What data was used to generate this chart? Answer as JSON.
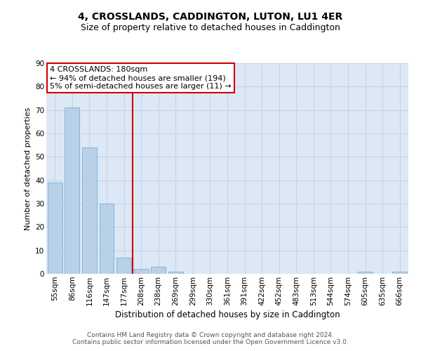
{
  "title1": "4, CROSSLANDS, CADDINGTON, LUTON, LU1 4ER",
  "title2": "Size of property relative to detached houses in Caddington",
  "xlabel": "Distribution of detached houses by size in Caddington",
  "ylabel": "Number of detached properties",
  "categories": [
    "55sqm",
    "86sqm",
    "116sqm",
    "147sqm",
    "177sqm",
    "208sqm",
    "238sqm",
    "269sqm",
    "299sqm",
    "330sqm",
    "361sqm",
    "391sqm",
    "422sqm",
    "452sqm",
    "483sqm",
    "513sqm",
    "544sqm",
    "574sqm",
    "605sqm",
    "635sqm",
    "666sqm"
  ],
  "values": [
    39,
    71,
    54,
    30,
    7,
    2,
    3,
    1,
    0,
    0,
    0,
    0,
    0,
    0,
    0,
    0,
    0,
    0,
    1,
    0,
    1
  ],
  "bar_color": "#b8d0e8",
  "bar_edge_color": "#7aafd4",
  "vline_x_idx": 4.5,
  "annotation_line1": "4 CROSSLANDS: 180sqm",
  "annotation_line2": "← 94% of detached houses are smaller (194)",
  "annotation_line3": "5% of semi-detached houses are larger (11) →",
  "annotation_box_color": "#ffffff",
  "annotation_box_edge_color": "#cc0000",
  "vline_color": "#cc0000",
  "ylim": [
    0,
    90
  ],
  "yticks": [
    0,
    10,
    20,
    30,
    40,
    50,
    60,
    70,
    80,
    90
  ],
  "grid_color": "#c8d4e8",
  "background_color": "#dce8f5",
  "footer": "Contains HM Land Registry data © Crown copyright and database right 2024.\nContains public sector information licensed under the Open Government Licence v3.0.",
  "title1_fontsize": 10,
  "title2_fontsize": 9,
  "xlabel_fontsize": 8.5,
  "ylabel_fontsize": 8,
  "tick_fontsize": 7.5,
  "annotation_fontsize": 8,
  "footer_fontsize": 6.5
}
